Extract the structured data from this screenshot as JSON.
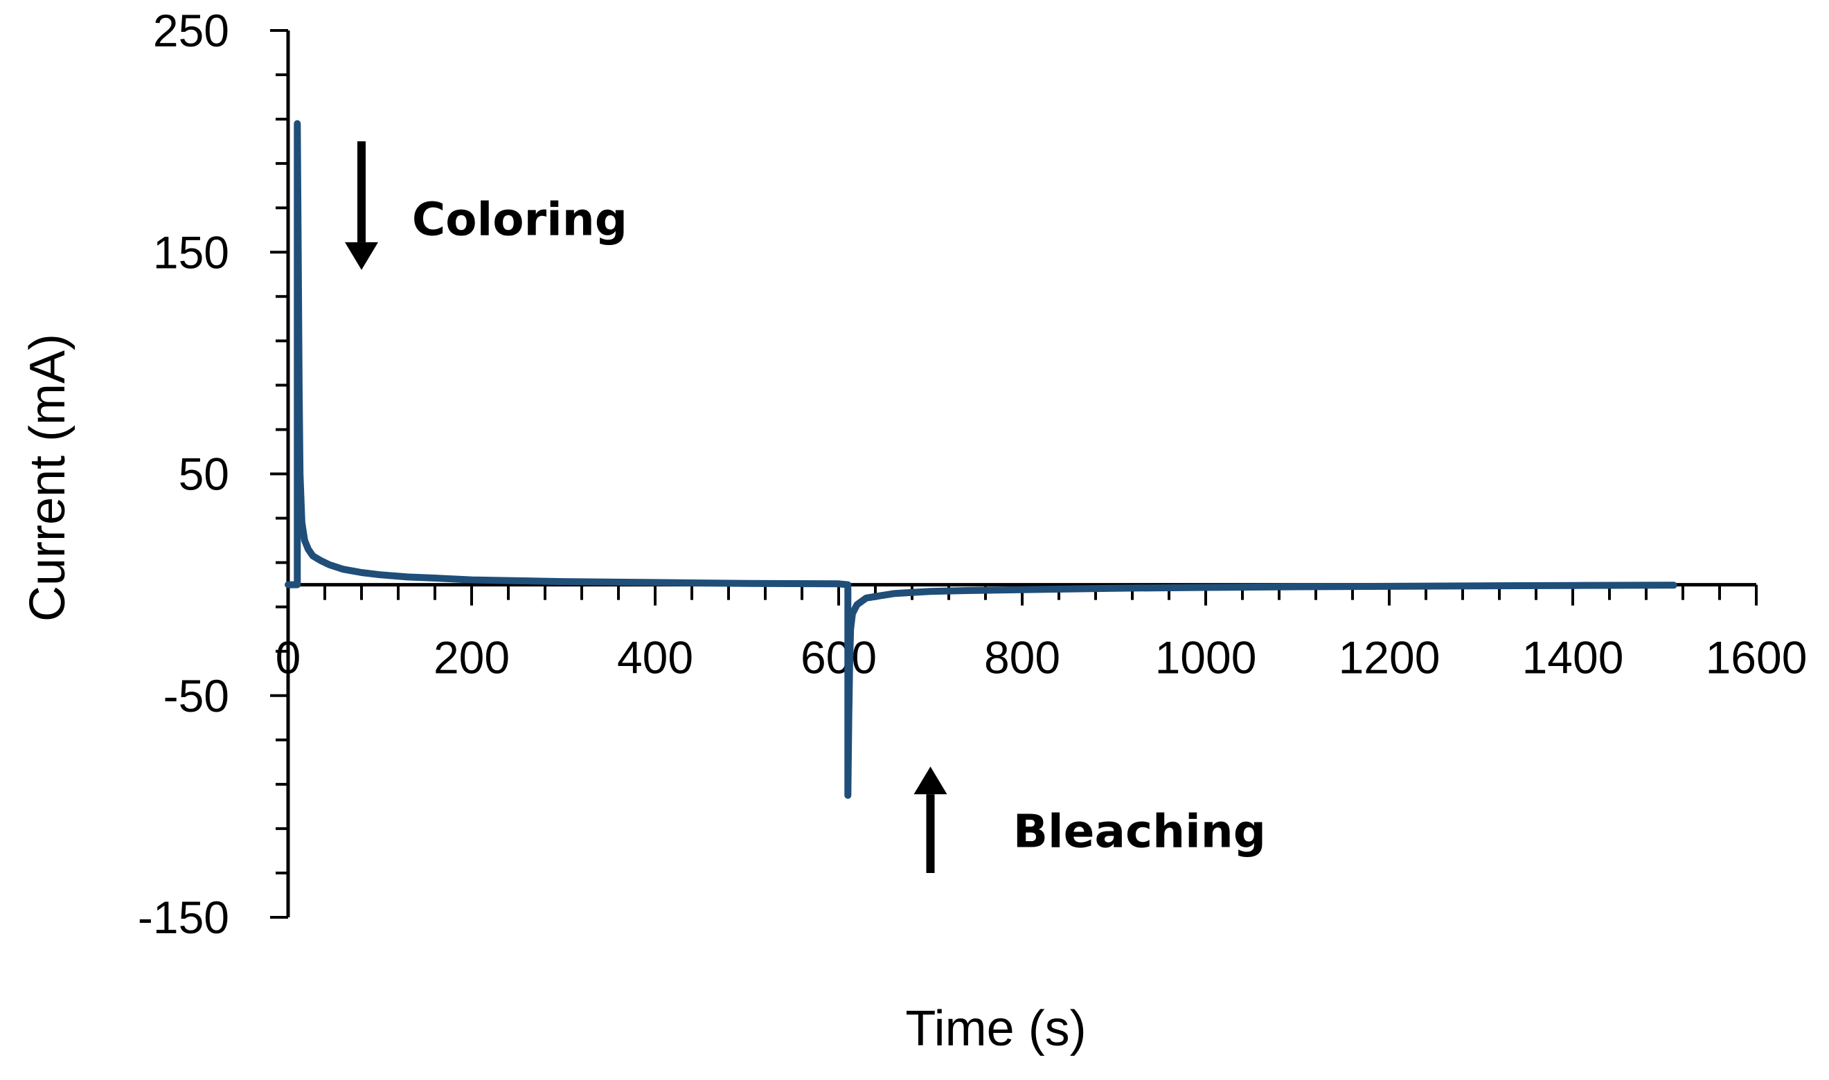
{
  "chart_data": {
    "type": "line",
    "title": "",
    "xlabel": "Time (s)",
    "ylabel": "Current (mA)",
    "xlim": [
      0,
      1600
    ],
    "ylim": [
      -150,
      250
    ],
    "x_ticks": [
      0,
      200,
      400,
      600,
      800,
      1000,
      1200,
      1400,
      1600
    ],
    "y_ticks": [
      250,
      150,
      50,
      -50,
      -150
    ],
    "y_minor_step": 20,
    "x_minor_step": 40,
    "grid": false,
    "legend": "none",
    "series": [
      {
        "color": "#1f4e79",
        "x": [
          0,
          10,
          10,
          11,
          12,
          13,
          15,
          18,
          22,
          27,
          35,
          45,
          60,
          80,
          100,
          130,
          160,
          200,
          250,
          300,
          350,
          400,
          450,
          500,
          550,
          600,
          610,
          610,
          611,
          612,
          613,
          615,
          620,
          630,
          645,
          660,
          680,
          700,
          740,
          800,
          900,
          1000,
          1100,
          1200,
          1300,
          1400,
          1500,
          1510
        ],
        "y": [
          0,
          0,
          208,
          150,
          90,
          50,
          28,
          20,
          16,
          13,
          11,
          9,
          7,
          5.5,
          4.5,
          3.5,
          3,
          2.2,
          1.8,
          1.4,
          1.2,
          1,
          0.8,
          0.6,
          0.5,
          0.4,
          0,
          -95,
          -60,
          -35,
          -20,
          -13,
          -9,
          -6,
          -5,
          -4,
          -3.5,
          -3,
          -2.6,
          -2.2,
          -1.6,
          -1.2,
          -0.9,
          -0.7,
          -0.5,
          -0.35,
          -0.2,
          -0.2
        ]
      }
    ],
    "annotations": [
      {
        "text": "Coloring",
        "arrow_direction": "down",
        "arrow_x": 80,
        "arrow_y_from": 200,
        "arrow_y_to": 142,
        "text_x": 135,
        "text_y": 164
      },
      {
        "text": "Bleaching",
        "arrow_direction": "up",
        "arrow_x": 700,
        "arrow_y_from": -130,
        "arrow_y_to": -82,
        "text_x": 790,
        "text_y": -112
      }
    ]
  }
}
